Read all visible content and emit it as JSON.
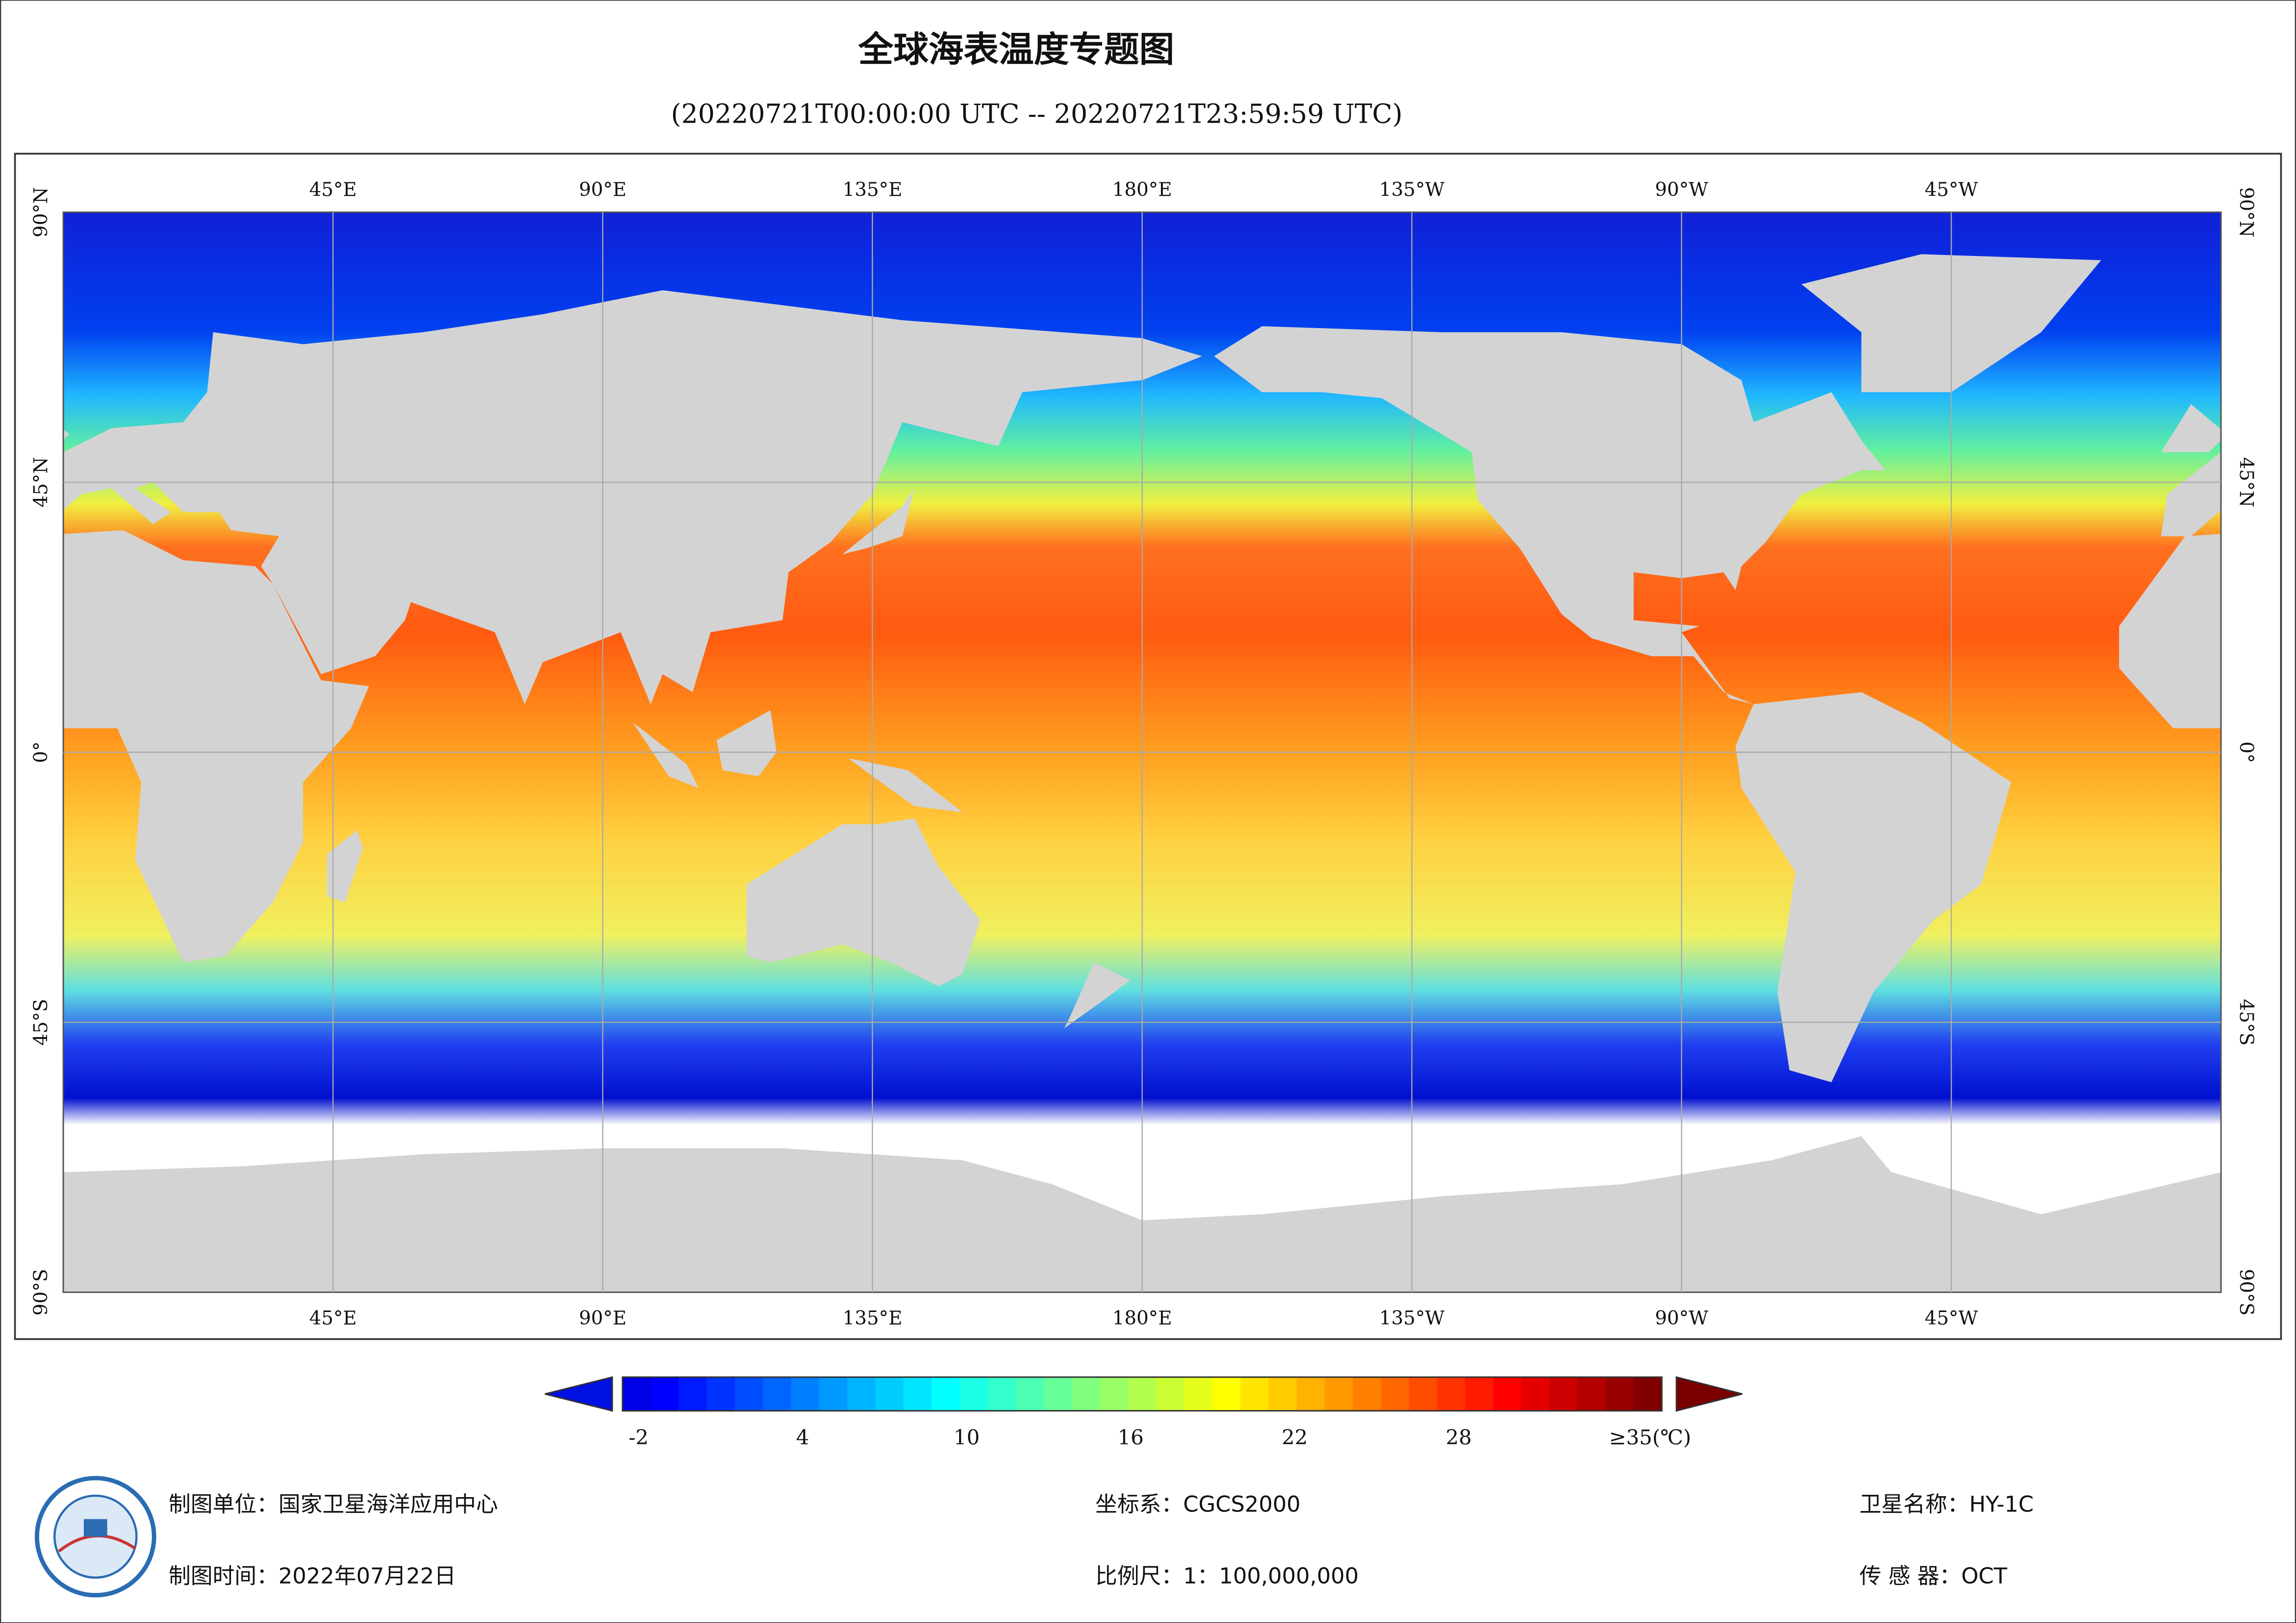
{
  "header": {
    "title": "全球海表温度专题图",
    "subtitle": "(20220721T00:00:00 UTC -- 20220721T23:59:59 UTC)"
  },
  "map": {
    "lon_labels": [
      "45°E",
      "90°E",
      "135°E",
      "180°E",
      "135°W",
      "90°W",
      "45°W"
    ],
    "lat_labels": [
      "90°N",
      "45°N",
      "0°",
      "45°S",
      "90°S"
    ]
  },
  "colorbar": {
    "range": [
      -2,
      35
    ],
    "ticks": [
      -2,
      4,
      10,
      16,
      22,
      28,
      {
        "value": 35,
        "label": "≥35(℃)"
      }
    ]
  },
  "footer": {
    "producer": "制图单位：国家卫星海洋应用中心",
    "date": "制图时间：2022年07月22日",
    "crs": "坐标系：CGCS2000",
    "scale": "比例尺：1：100,000,000",
    "satellite": "卫星名称：HY-1C",
    "sensor": "传 感 器：OCT"
  }
}
